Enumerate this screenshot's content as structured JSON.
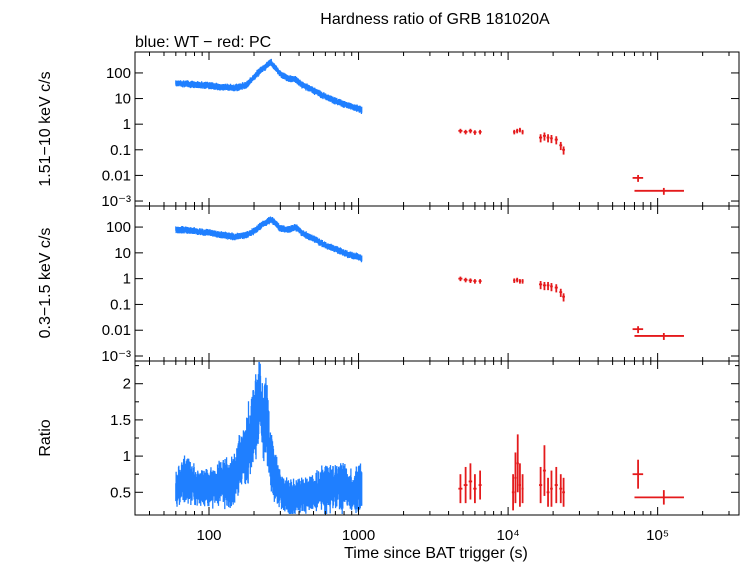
{
  "chart_data": {
    "type": "scatter",
    "title": "Hardness ratio of GRB 181020A",
    "subtitle": "blue: WT − red: PC",
    "xlabel": "Time since BAT trigger (s)",
    "xscale": "log",
    "xlim": [
      32,
      350000
    ],
    "x_ticks": [
      "100",
      "1000",
      "10⁴",
      "10⁵"
    ],
    "colors": {
      "WT": "#1f7fff",
      "PC": "#e41a1c"
    },
    "panels": [
      {
        "name": "hard",
        "ylabel": "1.51−10 keV c/s",
        "yscale": "log",
        "ylim": [
          0.0007,
          600
        ],
        "y_ticks": [
          "100",
          "10",
          "1",
          "0.1",
          "0.01",
          "10⁻³"
        ],
        "series": [
          {
            "name": "WT",
            "x": [
              60,
              70,
              80,
              100,
              120,
              150,
              180,
              200,
              220,
              240,
              260,
              280,
              300,
              340,
              380,
              420,
              500,
              600,
              700,
              800,
              900,
              1000,
              1050
            ],
            "y": [
              40,
              38,
              35,
              32,
              28,
              26,
              35,
              70,
              120,
              180,
              260,
              150,
              90,
              60,
              55,
              35,
              20,
              12,
              8,
              6,
              5,
              4,
              3.5
            ]
          },
          {
            "name": "PC",
            "x": [
              4800,
              5200,
              5600,
              6000,
              6500,
              11000,
              11500,
              12000,
              12500,
              16500,
              17500,
              18500,
              19500,
              21000,
              22500,
              23500,
              74000,
              110000
            ],
            "y": [
              0.55,
              0.5,
              0.55,
              0.48,
              0.5,
              0.5,
              0.55,
              0.6,
              0.5,
              0.3,
              0.35,
              0.3,
              0.28,
              0.25,
              0.15,
              0.1,
              0.008,
              0.0025
            ],
            "xerr": [
              150,
              150,
              150,
              150,
              150,
              200,
              200,
              200,
              200,
              400,
              400,
              400,
              400,
              500,
              500,
              500,
              6000,
              40000
            ],
            "yerr_frac": [
              0.2,
              0.2,
              0.2,
              0.2,
              0.2,
              0.2,
              0.2,
              0.2,
              0.2,
              0.35,
              0.35,
              0.35,
              0.35,
              0.35,
              0.35,
              0.35,
              0.3,
              0.3
            ]
          }
        ]
      },
      {
        "name": "soft",
        "ylabel": "0.3−1.5 keV c/s",
        "yscale": "log",
        "ylim": [
          0.0007,
          600
        ],
        "y_ticks": [
          "100",
          "10",
          "1",
          "0.1",
          "0.01",
          "10⁻³"
        ],
        "series": [
          {
            "name": "WT",
            "x": [
              60,
              70,
              80,
              100,
              120,
              150,
              180,
              200,
              220,
              240,
              260,
              280,
              300,
              340,
              380,
              420,
              500,
              600,
              700,
              800,
              900,
              1000,
              1050
            ],
            "y": [
              80,
              75,
              70,
              60,
              50,
              42,
              50,
              70,
              110,
              150,
              200,
              130,
              90,
              80,
              100,
              60,
              35,
              20,
              14,
              10,
              8,
              7,
              6
            ]
          },
          {
            "name": "PC",
            "x": [
              4800,
              5200,
              5600,
              6000,
              6500,
              11000,
              11500,
              12000,
              12500,
              16500,
              17500,
              18500,
              19500,
              21000,
              22500,
              23500,
              74000,
              110000
            ],
            "y": [
              1.0,
              0.9,
              0.85,
              0.8,
              0.8,
              0.85,
              0.9,
              0.8,
              0.8,
              0.6,
              0.55,
              0.55,
              0.5,
              0.45,
              0.3,
              0.2,
              0.011,
              0.006
            ],
            "xerr": [
              150,
              150,
              150,
              150,
              150,
              200,
              200,
              200,
              200,
              400,
              400,
              400,
              400,
              500,
              500,
              500,
              6000,
              40000
            ],
            "yerr_frac": [
              0.2,
              0.2,
              0.2,
              0.2,
              0.2,
              0.2,
              0.2,
              0.2,
              0.2,
              0.35,
              0.35,
              0.35,
              0.35,
              0.35,
              0.35,
              0.35,
              0.3,
              0.3
            ]
          }
        ]
      },
      {
        "name": "ratio",
        "ylabel": "Ratio",
        "yscale": "linear",
        "ylim": [
          0.2,
          2.3
        ],
        "y_ticks": [
          "2",
          "1.5",
          "1",
          "0.5"
        ],
        "series": [
          {
            "name": "WT",
            "x": [
              60,
              70,
              80,
              100,
              120,
              140,
              160,
              180,
              200,
              210,
              220,
              230,
              240,
              250,
              260,
              280,
              300,
              320,
              360,
              400,
              500,
              600,
              700,
              800,
              900,
              1000,
              1050
            ],
            "y": [
              0.55,
              0.7,
              0.6,
              0.55,
              0.65,
              0.6,
              0.9,
              1.1,
              1.5,
              1.7,
              1.8,
              1.4,
              1.6,
              1.2,
              0.9,
              0.7,
              0.55,
              0.45,
              0.4,
              0.45,
              0.5,
              0.55,
              0.6,
              0.55,
              0.5,
              0.6,
              0.55
            ],
            "err": [
              0.15,
              0.2,
              0.15,
              0.15,
              0.2,
              0.2,
              0.25,
              0.3,
              0.35,
              0.4,
              0.4,
              0.3,
              0.35,
              0.3,
              0.25,
              0.2,
              0.15,
              0.15,
              0.15,
              0.15,
              0.15,
              0.2,
              0.2,
              0.2,
              0.2,
              0.2,
              0.2
            ]
          },
          {
            "name": "PC",
            "x": [
              4800,
              5200,
              5600,
              6000,
              6500,
              10800,
              11200,
              11600,
              12000,
              12500,
              16500,
              17500,
              18500,
              19500,
              21000,
              22500,
              23500,
              74000,
              110000
            ],
            "y": [
              0.55,
              0.6,
              0.65,
              0.55,
              0.6,
              0.5,
              0.7,
              0.9,
              0.6,
              0.55,
              0.6,
              0.8,
              0.5,
              0.55,
              0.6,
              0.55,
              0.5,
              0.75,
              0.43
            ],
            "xerr": [
              150,
              150,
              150,
              150,
              150,
              200,
              200,
              200,
              200,
              200,
              400,
              400,
              400,
              400,
              500,
              500,
              500,
              6000,
              40000
            ],
            "err": [
              0.2,
              0.25,
              0.25,
              0.2,
              0.2,
              0.25,
              0.35,
              0.4,
              0.3,
              0.2,
              0.25,
              0.35,
              0.2,
              0.25,
              0.25,
              0.2,
              0.2,
              0.2,
              0.1
            ]
          }
        ]
      }
    ]
  }
}
